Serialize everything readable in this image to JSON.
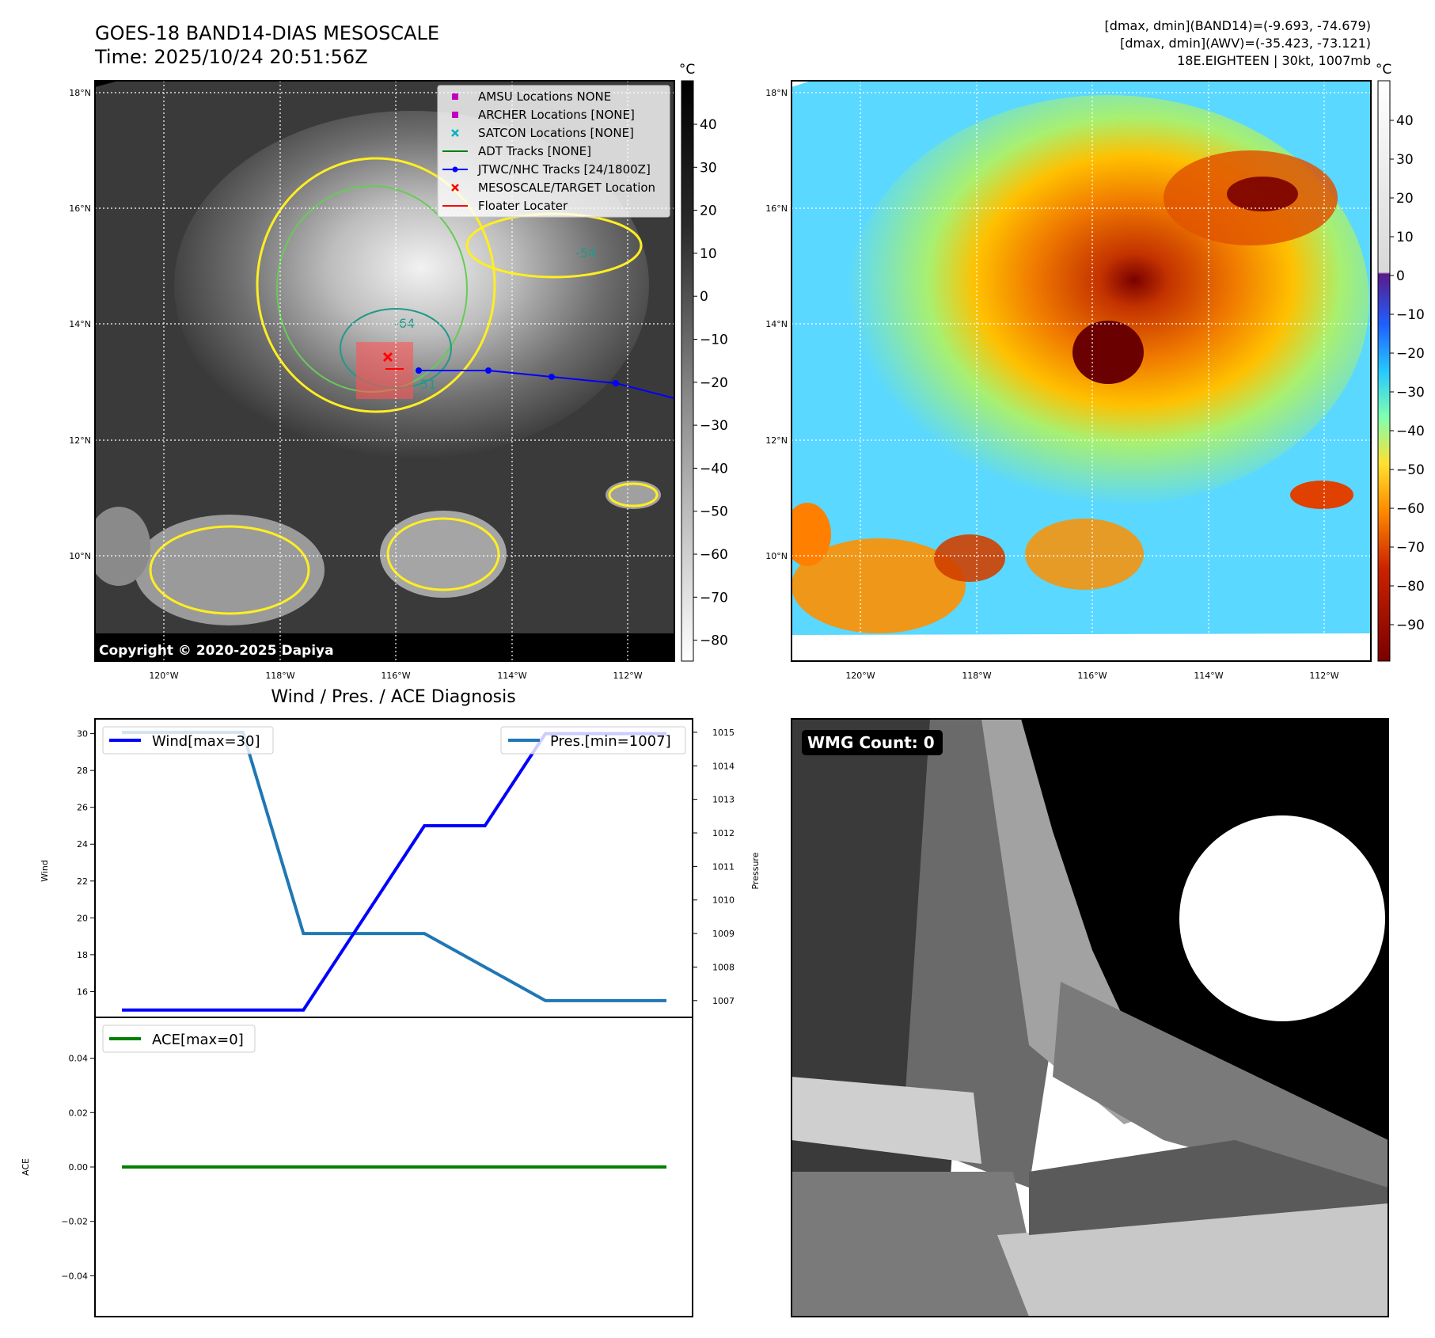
{
  "header": {
    "title": "GOES-18 BAND14-DIAS MESOSCALE",
    "time": "Time: 2025/10/24 20:51:56Z",
    "stats_band14": "[dmax, dmin](BAND14)=(-9.693, -74.679)",
    "stats_awv": "[dmax, dmin](AWV)=(-35.423, -73.121)",
    "storm_info": "18E.EIGHTEEN | 30kt, 1007mb"
  },
  "map": {
    "lat_labels": [
      "18°N",
      "16°N",
      "14°N",
      "12°N",
      "10°N"
    ],
    "lon_labels": [
      "120°W",
      "118°W",
      "116°W",
      "114°W",
      "112°W"
    ],
    "copyright": "Copyright © 2020-2025 Dapiya",
    "contour_labels": [
      "-64",
      "-54",
      "-51"
    ],
    "legend": [
      {
        "label": "AMSU Locations NONE",
        "marker": "square",
        "color": "#c000c0"
      },
      {
        "label": "ARCHER Locations [NONE]",
        "marker": "square",
        "color": "#c000c0"
      },
      {
        "label": "SATCON Locations [NONE]",
        "marker": "x",
        "color": "#00b0c0"
      },
      {
        "label": "ADT Tracks [NONE]",
        "marker": "line",
        "color": "#008000"
      },
      {
        "label": "JTWC/NHC Tracks [24/1800Z]",
        "marker": "line-dot",
        "color": "#0000ff"
      },
      {
        "label": "MESOSCALE/TARGET Location",
        "marker": "x",
        "color": "#ff0000"
      },
      {
        "label": "Floater Locater",
        "marker": "line",
        "color": "#ff0000"
      }
    ],
    "colorbar_unit": "°C",
    "colorbar_gray_ticks": [
      "40",
      "30",
      "20",
      "10",
      "0",
      "−10",
      "−20",
      "−30",
      "−40",
      "−50",
      "−60",
      "−70",
      "−80"
    ],
    "colorbar_color_ticks": [
      "40",
      "30",
      "20",
      "10",
      "0",
      "−10",
      "−20",
      "−30",
      "−40",
      "−50",
      "−60",
      "−70",
      "−80",
      "−90"
    ]
  },
  "diagnosis": {
    "title": "Wind / Pres. / ACE Diagnosis",
    "wmg_count": "WMG Count: 0"
  },
  "colors": {
    "wind": "#0000ff",
    "pressure": "#1f77b4",
    "ace": "#008000",
    "track": "#0000ff",
    "contour_yellow": "#ffee22",
    "contour_green": "#66cc55",
    "contour_teal": "#229988"
  },
  "chart_data": [
    {
      "type": "line",
      "title": "",
      "ylabel": "Wind",
      "ylabel_right": "Pressure",
      "x": [
        0,
        1,
        2,
        3,
        4,
        5,
        6,
        7,
        8,
        9
      ],
      "ylim": [
        14.6,
        30.8
      ],
      "ylim_right": [
        1006.5,
        1015.4
      ],
      "y_ticks": [
        16,
        18,
        20,
        22,
        24,
        26,
        28,
        30
      ],
      "y_ticks_right": [
        1007,
        1008,
        1009,
        1010,
        1011,
        1012,
        1013,
        1014,
        1015
      ],
      "series": [
        {
          "name": "Wind[max=30]",
          "axis": "left",
          "values": [
            15,
            15,
            15,
            15,
            20,
            25,
            25,
            30,
            30,
            30
          ]
        },
        {
          "name": "Pres.[min=1007]",
          "axis": "right",
          "values": [
            1015,
            1015,
            1015,
            1009,
            1009,
            1009,
            1008,
            1007,
            1007,
            1007
          ]
        }
      ],
      "legend": [
        "upper-left",
        "upper-right"
      ]
    },
    {
      "type": "line",
      "title": "",
      "ylabel": "ACE",
      "x": [
        0,
        1,
        2,
        3,
        4,
        5,
        6,
        7,
        8,
        9
      ],
      "ylim": [
        -0.055,
        0.055
      ],
      "y_ticks": [
        -0.04,
        -0.02,
        0.0,
        0.02,
        0.04
      ],
      "series": [
        {
          "name": "ACE[max=0]",
          "values": [
            0,
            0,
            0,
            0,
            0,
            0,
            0,
            0,
            0,
            0
          ]
        }
      ],
      "legend": "upper-left"
    }
  ]
}
